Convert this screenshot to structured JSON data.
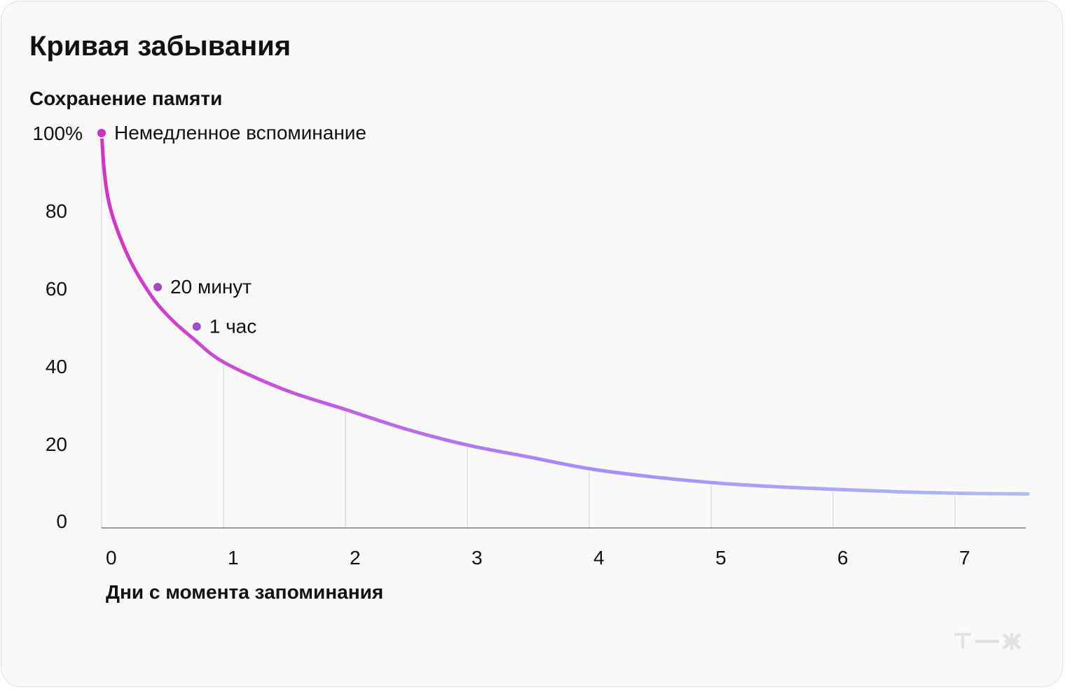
{
  "title": "Кривая забывания",
  "chart_data": {
    "type": "line",
    "title": "Кривая забывания",
    "ylabel": "Сохранение памяти",
    "xlabel": "Дни с момента запоминания",
    "x_ticks": [
      "0",
      "1",
      "2",
      "3",
      "4",
      "5",
      "6",
      "7"
    ],
    "y_ticks": [
      "0",
      "20",
      "40",
      "60",
      "80",
      "100%"
    ],
    "xlim": [
      0,
      7.6
    ],
    "ylim": [
      0,
      100
    ],
    "grid": "vertical",
    "series": [
      {
        "x": [
          0,
          0.02,
          0.05,
          0.1,
          0.2,
          0.3,
          0.45,
          0.6,
          0.75,
          1,
          1.5,
          2,
          2.5,
          3,
          3.5,
          4,
          4.5,
          5,
          5.5,
          6,
          6.5,
          7,
          7.6
        ],
        "values": [
          100,
          91,
          84,
          78,
          70,
          64,
          57,
          52,
          48,
          42,
          35,
          30,
          25,
          21,
          18,
          15,
          13,
          11.5,
          10.5,
          9.8,
          9.2,
          8.8,
          8.6
        ],
        "colors": [
          "#d633c6",
          "#a78bfa",
          "#aebef8"
        ]
      }
    ],
    "annotations": [
      {
        "label": "Немедленное вспоминание",
        "x": 0,
        "y": 100,
        "color": "#cc33bf"
      },
      {
        "label": "20 минут",
        "x": 0.46,
        "y": 61,
        "color": "#b042c8"
      },
      {
        "label": "1 час",
        "x": 0.78,
        "y": 51,
        "color": "#a04ecc"
      }
    ]
  },
  "logo": {
    "text": "Т—Ж",
    "icon": "tj-logo-icon",
    "color": "#e2e2e5"
  }
}
